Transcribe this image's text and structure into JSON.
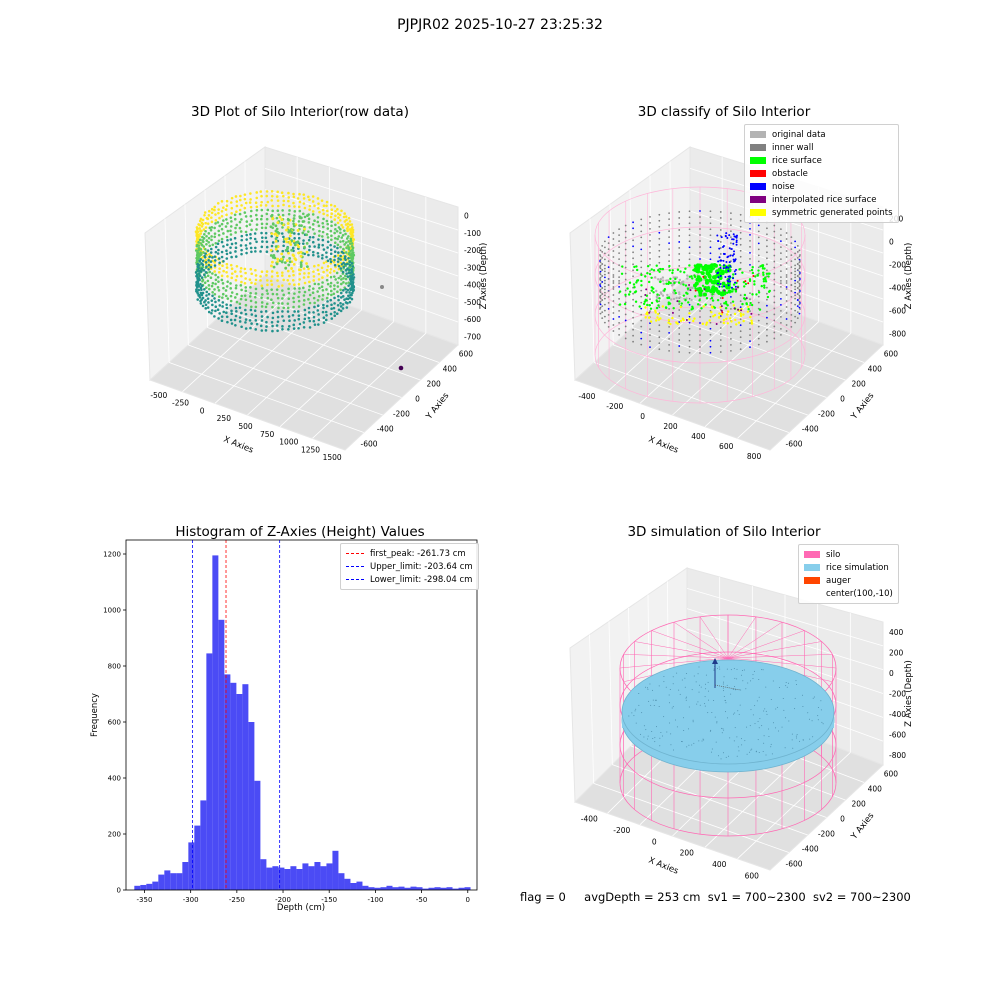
{
  "suptitle": "PJPJR02 2025-10-27 23:25:32",
  "status_line": {
    "flag": "flag = 0",
    "avg_depth": "avgDepth = 253 cm",
    "sv1": "sv1 = 700~2300",
    "sv2": "sv2 = 700~2300"
  },
  "chart_data": [
    {
      "type": "scatter",
      "title": "3D Plot of Silo Interior(row data)",
      "xlabel": "X Axies",
      "ylabel": "Y Axies",
      "zlabel": "Z Axies (Depth)",
      "x_ticks": [
        "-500",
        "-250",
        "0",
        "250",
        "500",
        "750",
        "1000",
        "1250",
        "1500"
      ],
      "y_ticks": [
        "-600",
        "-400",
        "-200",
        "0",
        "200",
        "400",
        "600"
      ],
      "z_ticks": [
        "0",
        "-100",
        "-200",
        "-300",
        "-400",
        "-500",
        "-600",
        "-700"
      ],
      "colormap": [
        "#440154",
        "#21918c",
        "#5ec962",
        "#fde725"
      ]
    },
    {
      "type": "scatter",
      "title": "3D classify of Silo Interior",
      "xlabel": "X Axies",
      "ylabel": "Y Axies",
      "zlabel": "Z Axies (Depth)",
      "x_ticks": [
        "-400",
        "-200",
        "0",
        "200",
        "400",
        "600",
        "800"
      ],
      "y_ticks": [
        "-600",
        "-400",
        "-200",
        "0",
        "200",
        "400",
        "600"
      ],
      "z_ticks": [
        "200",
        "0",
        "-200",
        "-400",
        "-600",
        "-800"
      ],
      "legend": [
        {
          "label": "original data",
          "color": "#b3b3b3"
        },
        {
          "label": "inner wall",
          "color": "#808080"
        },
        {
          "label": "rice surface",
          "color": "#00ff00"
        },
        {
          "label": "obstacle",
          "color": "#ff0000"
        },
        {
          "label": "noise",
          "color": "#0000ff"
        },
        {
          "label": "interpolated rice surface",
          "color": "#800080"
        },
        {
          "label": "symmetric generated points",
          "color": "#ffff00"
        }
      ],
      "legend_position": "upper right",
      "wireframe_color": "#ffb6d9"
    },
    {
      "type": "bar",
      "title": "Histogram of Z-Axies (Height) Values",
      "xlabel": "Depth (cm)",
      "ylabel": "Frequency",
      "xlim": [
        -370,
        10
      ],
      "ylim": [
        0,
        1250
      ],
      "x_ticks": [
        -350,
        -300,
        -250,
        -200,
        -150,
        -100,
        -50,
        0
      ],
      "y_ticks": [
        0,
        200,
        400,
        600,
        800,
        1000,
        1200
      ],
      "bin_width": 6.5,
      "bin_start": -361,
      "values": [
        15,
        18,
        22,
        30,
        55,
        70,
        60,
        60,
        100,
        170,
        230,
        320,
        845,
        1195,
        965,
        770,
        740,
        700,
        735,
        600,
        390,
        110,
        80,
        85,
        80,
        75,
        85,
        75,
        95,
        85,
        100,
        85,
        95,
        140,
        60,
        40,
        25,
        30,
        15,
        10,
        8,
        10,
        15,
        10,
        12,
        8,
        12,
        10,
        5,
        8,
        10,
        8,
        10,
        5,
        8,
        10
      ],
      "bar_color": "#4b4bf5",
      "reference_lines": [
        {
          "label": "first_peak: -261.73 cm",
          "x": -261.73,
          "color": "#ff0000"
        },
        {
          "label": "Upper_limit: -203.64 cm",
          "x": -203.64,
          "color": "#0000ff"
        },
        {
          "label": "Lower_limit: -298.04 cm",
          "x": -298.04,
          "color": "#0000ff"
        }
      ],
      "legend_position": "upper right"
    },
    {
      "type": "scatter",
      "title": "3D simulation of Silo Interior",
      "xlabel": "X Axies",
      "ylabel": "Y Axies",
      "zlabel": "Z Axies (Depth)",
      "x_ticks": [
        "-400",
        "-200",
        "0",
        "200",
        "400",
        "600"
      ],
      "y_ticks": [
        "-600",
        "-400",
        "-200",
        "0",
        "200",
        "400",
        "600"
      ],
      "z_ticks": [
        "400",
        "200",
        "0",
        "-200",
        "-400",
        "-600",
        "-800"
      ],
      "legend": [
        {
          "label": "silo",
          "color": "#ff69b4"
        },
        {
          "label": "rice simulation",
          "color": "#87ceeb"
        },
        {
          "label": "auger",
          "color": "#ff4500"
        },
        {
          "label": "center(100,-10)",
          "color": ""
        }
      ],
      "legend_position": "upper right"
    }
  ]
}
